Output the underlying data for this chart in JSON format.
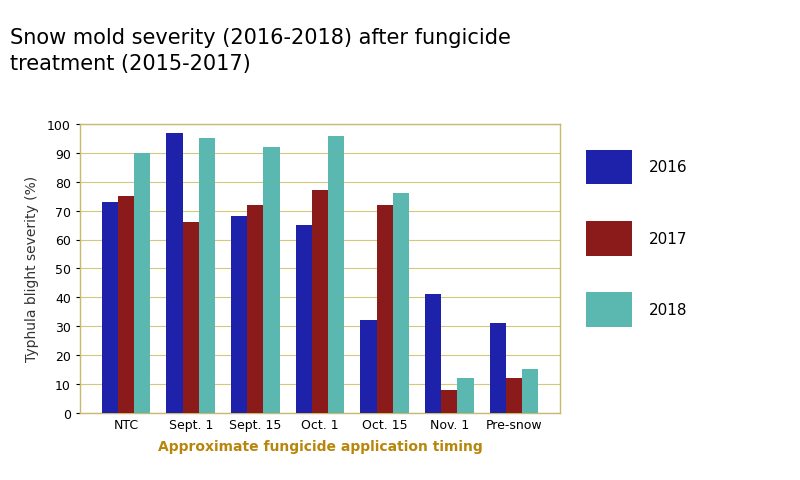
{
  "title_line1": "Snow mold severity (2016-2018) after fungicide",
  "title_line2": "treatment (2015-2017)",
  "title_bg_color": "#c5d3e0",
  "xlabel": "Approximate fungicide application timing",
  "ylabel": "Typhula blight severity (%)",
  "categories": [
    "NTC",
    "Sept. 1",
    "Sept. 15",
    "Oct. 1",
    "Oct. 15",
    "Nov. 1",
    "Pre-snow"
  ],
  "series": {
    "2016": [
      73,
      97,
      68,
      65,
      32,
      41,
      31
    ],
    "2017": [
      75,
      66,
      72,
      77,
      72,
      8,
      12
    ],
    "2018": [
      90,
      95,
      92,
      96,
      76,
      12,
      15
    ]
  },
  "colors": {
    "2016": "#1e22aa",
    "2017": "#8b1a1a",
    "2018": "#5bb8b0"
  },
  "ylim": [
    0,
    100
  ],
  "yticks": [
    0,
    10,
    20,
    30,
    40,
    50,
    60,
    70,
    80,
    90,
    100
  ],
  "legend_labels": [
    "2016",
    "2017",
    "2018"
  ],
  "bar_width": 0.25,
  "grid_color": "#d4c87a",
  "axis_color": "#c8b870",
  "xlabel_color": "#b8860b",
  "ylabel_color": "#333333",
  "background_color": "#ffffff",
  "plot_bg_color": "#ffffff",
  "title_fontsize": 15,
  "label_fontsize": 10,
  "tick_fontsize": 9,
  "legend_fontsize": 11
}
